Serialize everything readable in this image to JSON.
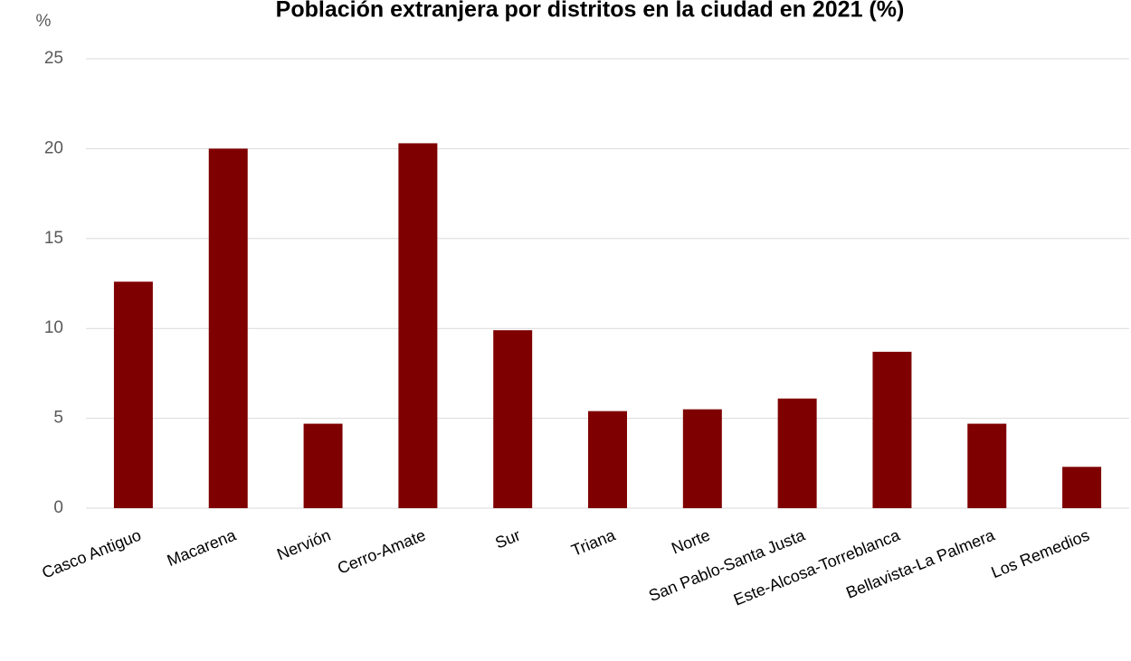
{
  "chart_data": {
    "type": "bar",
    "title": "Población extranjera por distritos en la ciudad en 2021 (%)",
    "ylabel": "%",
    "categories": [
      "Casco Antiguo",
      "Macarena",
      "Nervión",
      "Cerro-Amate",
      "Sur",
      "Triana",
      "Norte",
      "San Pablo-Santa Justa",
      "Este-Alcosa-Torreblanca",
      "Bellavista-La Palmera",
      "Los Remedios"
    ],
    "values": [
      12.6,
      20.0,
      4.7,
      20.3,
      9.9,
      5.4,
      5.5,
      6.1,
      8.7,
      4.7,
      2.3
    ],
    "color": "#7f0000",
    "ylim": [
      0,
      25
    ],
    "yticks": [
      0,
      5,
      10,
      15,
      20,
      25
    ],
    "grid": true
  }
}
